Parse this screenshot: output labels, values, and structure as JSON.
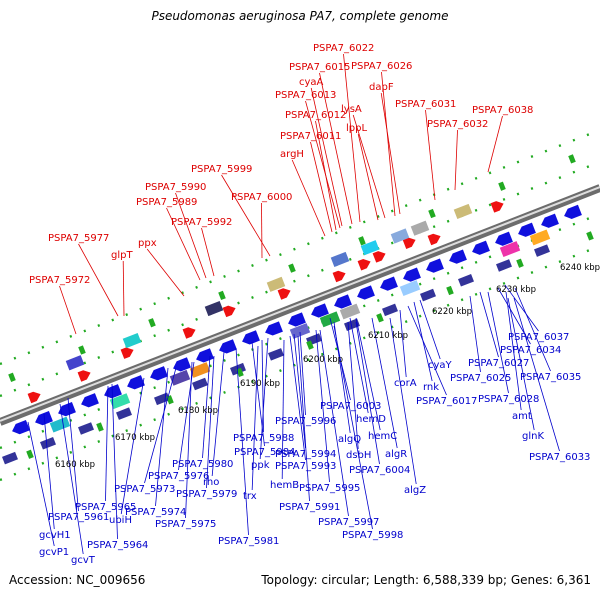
{
  "title": "Pseudomonas aeruginosa PA7, complete genome",
  "footer": {
    "accession": "Accession: NC_009656",
    "summary": "Topology: circular; Length: 6,588,339 bp; Genes: 6,361"
  },
  "colors": {
    "forward_label": "#dd0000",
    "reverse_label": "#0000cc",
    "backbone": "#888888",
    "ticks": "#22aa22"
  },
  "scale_labels": [
    "6160 kbp",
    "6170 kbp",
    "6180 kbp",
    "6190 kbp",
    "6200 kbp",
    "6210 kbp",
    "6220 kbp",
    "6230 kbp",
    "6240 kbp"
  ],
  "top_labels": [
    "PSPA7_6022",
    "PSPA7_6015",
    "PSPA7_6026",
    "cyaA",
    "dapF",
    "PSPA7_6013",
    "lysA",
    "PSPA7_6031",
    "PSPA7_6038",
    "PSPA7_6012",
    "lppL",
    "PSPA7_6032",
    "PSPA7_6011",
    "argH",
    "PSPA7_5999",
    "PSPA7_5990",
    "PSPA7_6000",
    "PSPA7_5989",
    "PSPA7_5992",
    "PSPA7_5977",
    "glpT",
    "ppx",
    "PSPA7_5972"
  ],
  "bottom_labels": [
    "PSPA7_6037",
    "PSPA7_6034",
    "PSPA7_6027",
    "PSPA7_6025",
    "PSPA7_6035",
    "cyaY",
    "rnk",
    "PSPA7_6028",
    "corA",
    "PSPA7_6017",
    "amt",
    "PSPA7_6003",
    "glnK",
    "hemD",
    "PSPA7_5996",
    "PSPA7_5988",
    "hemC",
    "algQ",
    "PSPA7_5984",
    "ppk",
    "PSPA7_5994",
    "dsbH",
    "algR",
    "PSPA7_5980",
    "PSPA7_5993",
    "PSPA7_6004",
    "PSPA7_6033",
    "PSPA7_5976",
    "rho",
    "hemB",
    "PSPA7_5973",
    "trx",
    "PSPA7_5995",
    "algZ",
    "PSPA7_5979",
    "PSPA7_5974",
    "PSPA7_5991",
    "PSPA7_5965",
    "ubiH",
    "PSPA7_5975",
    "PSPA7_5997",
    "PSPA7_5961",
    "PSPA7_5998",
    "gcvH1",
    "PSPA7_5964",
    "PSPA7_5981",
    "gcvP1",
    "gcvT"
  ]
}
